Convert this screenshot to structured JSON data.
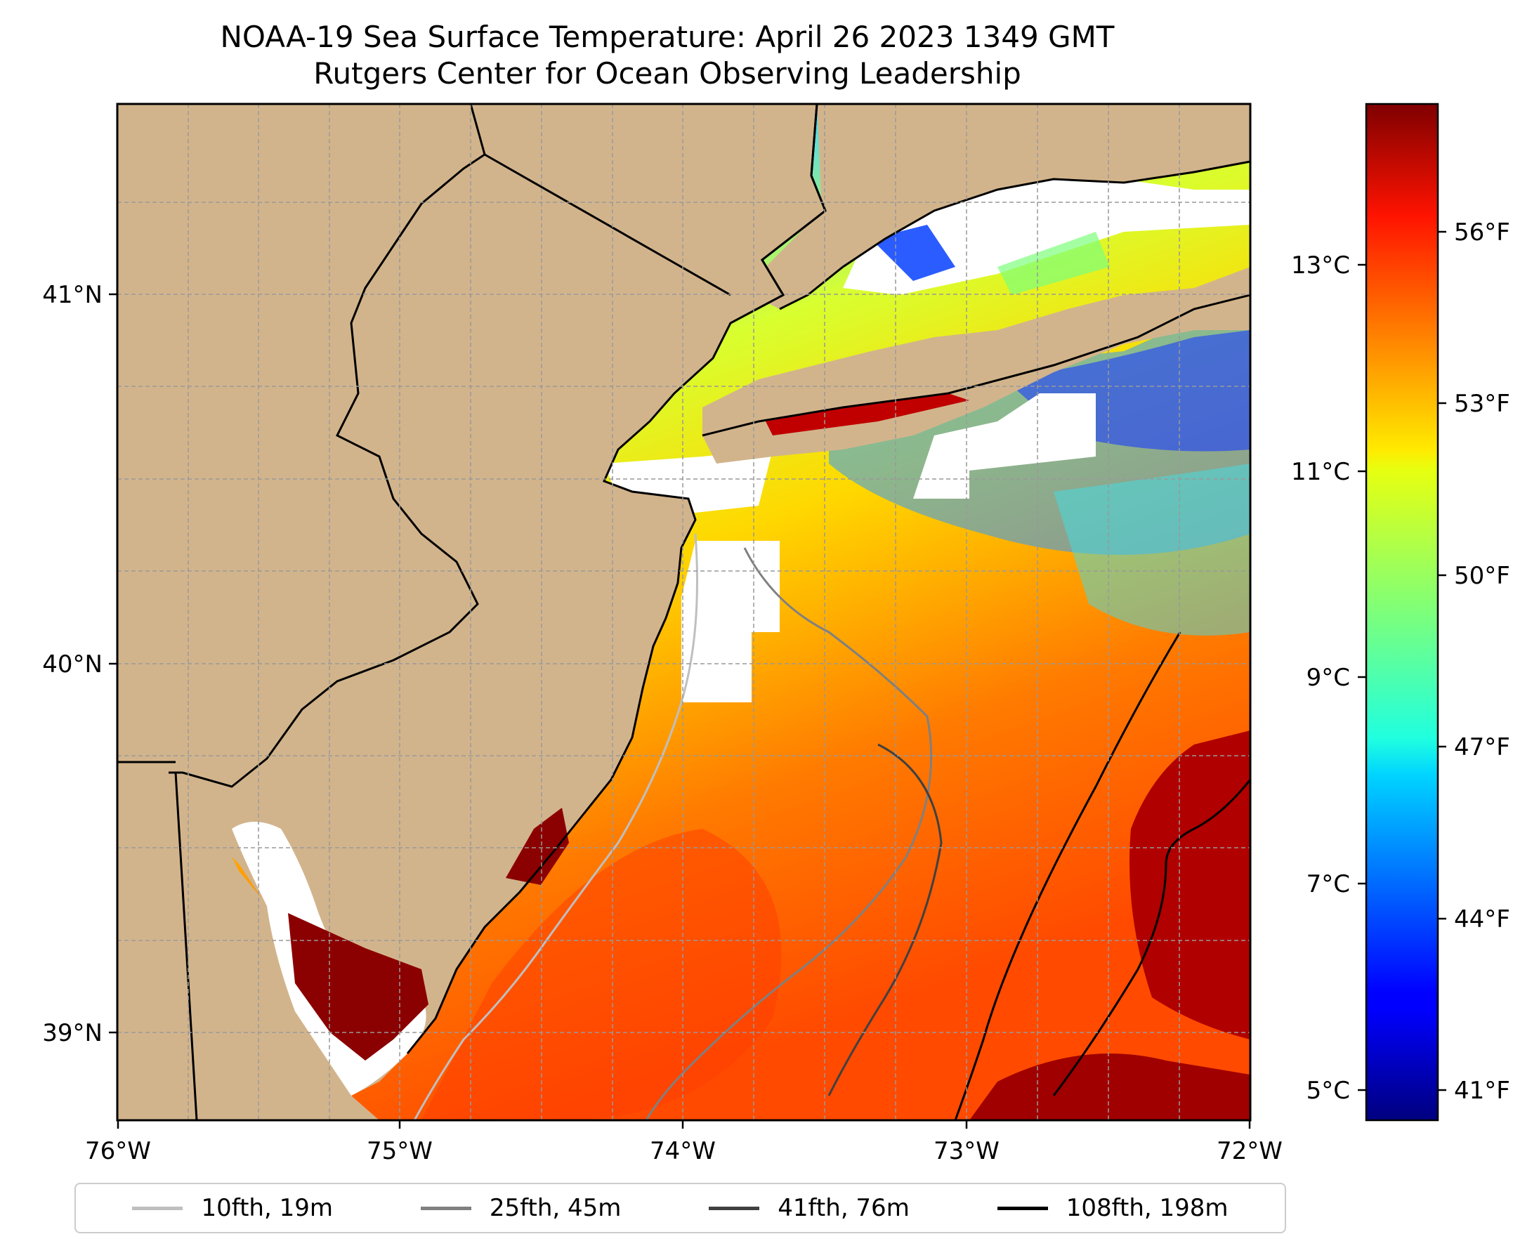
{
  "title_line1": "NOAA-19 Sea Surface Temperature: April 26 2023 1349 GMT",
  "title_line2": "Rutgers Center for Ocean Observing Leadership",
  "map": {
    "lon_range": [
      -76,
      -72
    ],
    "lat_range": [
      38.75,
      41.5
    ],
    "lon_ticks": [
      "76°W",
      "75°W",
      "74°W",
      "73°W",
      "72°W"
    ],
    "lat_ticks": [
      "41°N",
      "40°N",
      "39°N"
    ],
    "land_color": "#d2b48c",
    "no_data_color": "#ffffff",
    "grid": "dashed"
  },
  "colorbar": {
    "colormap": "jet",
    "celsius_ticks": [
      "13°C",
      "11°C",
      "9°C",
      "7°C",
      "5°C"
    ],
    "fahrenheit_ticks": [
      "56°F",
      "53°F",
      "50°F",
      "47°F",
      "44°F",
      "41°F"
    ]
  },
  "legend": [
    {
      "label": "10fth, 19m",
      "color": "#bfbfbf"
    },
    {
      "label": "25fth, 45m",
      "color": "#808080"
    },
    {
      "label": "41fth, 76m",
      "color": "#404040"
    },
    {
      "label": "108fth, 198m",
      "color": "#000000"
    }
  ]
}
